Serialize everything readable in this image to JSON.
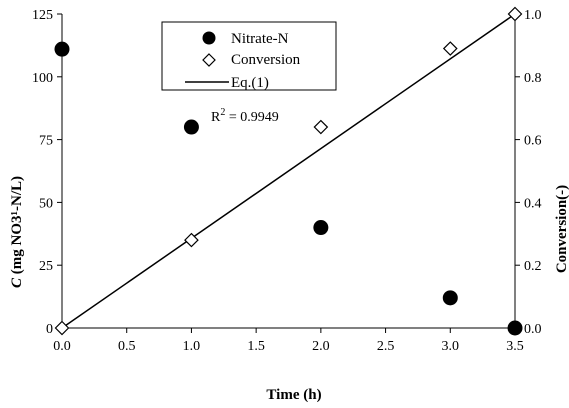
{
  "chart_data": {
    "type": "scatter",
    "title": "",
    "x": [
      0.0,
      1.0,
      2.0,
      3.0,
      3.5
    ],
    "xlabel": "Time (h)",
    "xlim": [
      0,
      3.5
    ],
    "xticks": [
      "0.0",
      "0.5",
      "1.0",
      "1.5",
      "2.0",
      "2.5",
      "3.0",
      "3.5"
    ],
    "ylabel": "C (mg NO3¹-N/L)",
    "ylabel_italic_part": "C",
    "ylabel_rest": " (mg NO3¹-N/L)",
    "ylim": [
      0,
      125
    ],
    "yticks": [
      "0",
      "25",
      "50",
      "75",
      "100",
      "125"
    ],
    "y2label": "Conversion(-)",
    "y2lim": [
      0,
      1.0
    ],
    "y2ticks": [
      "0.0",
      "0.2",
      "0.4",
      "0.6",
      "0.8",
      "1.0"
    ],
    "series": [
      {
        "name": "Nitrate-N",
        "axis": "left",
        "marker": "filled-circle",
        "x": [
          0.0,
          1.0,
          2.0,
          3.0,
          3.5
        ],
        "values": [
          111,
          80,
          40,
          12,
          0
        ]
      },
      {
        "name": "Conversion",
        "axis": "right",
        "marker": "open-diamond",
        "x": [
          0.0,
          1.0,
          2.0,
          3.0,
          3.5
        ],
        "values": [
          0.0,
          0.28,
          0.64,
          0.89,
          1.0
        ]
      },
      {
        "name": "Eq.(1)",
        "axis": "right",
        "marker": "line",
        "x": [
          0.0,
          3.5
        ],
        "values": [
          0.0,
          1.0
        ]
      }
    ],
    "annotation": "R",
    "annotation_sup": "2",
    "annotation_rest": " = 0.9949",
    "grid": false,
    "legend_position": "top-center",
    "colors": {
      "marker": "#000000",
      "line": "#000000",
      "background": "#ffffff"
    }
  }
}
